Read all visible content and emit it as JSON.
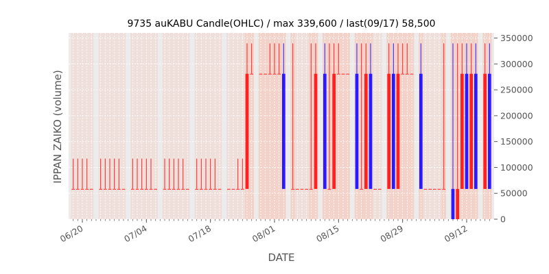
{
  "chart_data": {
    "type": "candlestick",
    "title": "9735 auKABU Candle(OHLC) / max 339,600 / last(09/17) 58,500",
    "xlabel": "DATE",
    "ylabel": "IPPAN ZAIKO (volume)",
    "ylim": [
      0,
      360000
    ],
    "yticks": [
      0,
      50000,
      100000,
      150000,
      200000,
      250000,
      300000,
      350000
    ],
    "ytick_labels": [
      "0",
      "50000",
      "100000",
      "150000",
      "200000",
      "250000",
      "300000",
      "350000"
    ],
    "x_start": "06/17",
    "x_end": "09/18",
    "xticks": [
      "06/20",
      "07/04",
      "07/18",
      "08/01",
      "08/15",
      "08/29",
      "09/12"
    ],
    "colors": {
      "up": "#ff2020",
      "down": "#2a1aff",
      "plot_bg": "#ececec",
      "grid": "#ffffff",
      "shade": "#f5c9bd"
    },
    "dates": [
      "06/18",
      "06/19",
      "06/20",
      "06/21",
      "06/22",
      "06/24",
      "06/25",
      "06/26",
      "06/27",
      "06/28",
      "06/29",
      "07/01",
      "07/02",
      "07/03",
      "07/04",
      "07/05",
      "07/06",
      "07/08",
      "07/09",
      "07/10",
      "07/11",
      "07/12",
      "07/13",
      "07/15",
      "07/16",
      "07/17",
      "07/18",
      "07/19",
      "07/20",
      "07/22",
      "07/23",
      "07/24",
      "07/25",
      "07/26",
      "07/27",
      "07/29",
      "07/30",
      "07/31",
      "08/01",
      "08/02",
      "08/03",
      "08/05",
      "08/06",
      "08/07",
      "08/08",
      "08/09",
      "08/10",
      "08/12",
      "08/13",
      "08/14",
      "08/15",
      "08/16",
      "08/17",
      "08/19",
      "08/20",
      "08/21",
      "08/22",
      "08/23",
      "08/24",
      "08/26",
      "08/27",
      "08/28",
      "08/29",
      "08/30",
      "08/31",
      "09/02",
      "09/03",
      "09/04",
      "09/05",
      "09/06",
      "09/07",
      "09/09",
      "09/10",
      "09/11",
      "09/12",
      "09/13",
      "09/14",
      "09/16",
      "09/17"
    ],
    "ohlc": [
      [
        58500,
        117000,
        58500,
        58500
      ],
      [
        58500,
        117000,
        58500,
        58500
      ],
      [
        58500,
        117000,
        58500,
        58500
      ],
      [
        58500,
        117000,
        58500,
        58500
      ],
      [
        58500,
        58500,
        58500,
        58500
      ],
      [
        58500,
        117000,
        58500,
        58500
      ],
      [
        58500,
        117000,
        58500,
        58500
      ],
      [
        58500,
        117000,
        58500,
        58500
      ],
      [
        58500,
        117000,
        58500,
        58500
      ],
      [
        58500,
        117000,
        58500,
        58500
      ],
      [
        58500,
        58500,
        58500,
        58500
      ],
      [
        58500,
        117000,
        58500,
        58500
      ],
      [
        58500,
        117000,
        58500,
        58500
      ],
      [
        58500,
        117000,
        58500,
        58500
      ],
      [
        58500,
        117000,
        58500,
        58500
      ],
      [
        58500,
        117000,
        58500,
        58500
      ],
      [
        58500,
        58500,
        58500,
        58500
      ],
      [
        58500,
        117000,
        58500,
        58500
      ],
      [
        58500,
        117000,
        58500,
        58500
      ],
      [
        58500,
        117000,
        58500,
        58500
      ],
      [
        58500,
        117000,
        58500,
        58500
      ],
      [
        58500,
        117000,
        58500,
        58500
      ],
      [
        58500,
        58500,
        58500,
        58500
      ],
      [
        58500,
        117000,
        58500,
        58500
      ],
      [
        58500,
        117000,
        58500,
        58500
      ],
      [
        58500,
        117000,
        58500,
        58500
      ],
      [
        58500,
        117000,
        58500,
        58500
      ],
      [
        58500,
        117000,
        58500,
        58500
      ],
      [
        58500,
        58500,
        58500,
        58500
      ],
      [
        58500,
        58500,
        58500,
        58500
      ],
      [
        58500,
        58500,
        58500,
        58500
      ],
      [
        58500,
        117000,
        58500,
        58500
      ],
      [
        58500,
        117000,
        58500,
        58500
      ],
      [
        58500,
        339600,
        58500,
        281000
      ],
      [
        281000,
        339600,
        281000,
        281000
      ],
      [
        281000,
        281000,
        281000,
        281000
      ],
      [
        281000,
        281000,
        281000,
        281000
      ],
      [
        281000,
        339600,
        281000,
        281000
      ],
      [
        281000,
        339600,
        281000,
        281000
      ],
      [
        281000,
        339600,
        281000,
        281000
      ],
      [
        281000,
        339600,
        58500,
        58500
      ],
      [
        58500,
        339600,
        58500,
        58500
      ],
      [
        58500,
        58500,
        58500,
        58500
      ],
      [
        58500,
        58500,
        58500,
        58500
      ],
      [
        58500,
        58500,
        58500,
        58500
      ],
      [
        58500,
        339600,
        58500,
        58500
      ],
      [
        58500,
        339600,
        58500,
        281000
      ],
      [
        281000,
        339600,
        58500,
        58500
      ],
      [
        58500,
        339600,
        58500,
        58500
      ],
      [
        58500,
        339600,
        58500,
        281000
      ],
      [
        281000,
        339600,
        281000,
        281000
      ],
      [
        281000,
        281000,
        281000,
        281000
      ],
      [
        281000,
        281000,
        281000,
        281000
      ],
      [
        281000,
        339600,
        58500,
        58500
      ],
      [
        58500,
        339600,
        58500,
        58500
      ],
      [
        58500,
        339600,
        58500,
        281000
      ],
      [
        281000,
        339600,
        58500,
        58500
      ],
      [
        58500,
        58500,
        58500,
        58500
      ],
      [
        58500,
        58500,
        58500,
        58500
      ],
      [
        58500,
        339600,
        58500,
        281000
      ],
      [
        281000,
        339600,
        58500,
        58500
      ],
      [
        58500,
        339600,
        58500,
        281000
      ],
      [
        281000,
        339600,
        281000,
        281000
      ],
      [
        281000,
        339600,
        281000,
        281000
      ],
      [
        281000,
        281000,
        281000,
        281000
      ],
      [
        281000,
        339600,
        58500,
        58500
      ],
      [
        58500,
        58500,
        58500,
        58500
      ],
      [
        58500,
        58500,
        58500,
        58500
      ],
      [
        58500,
        58500,
        58500,
        58500
      ],
      [
        58500,
        58500,
        58500,
        58500
      ],
      [
        58500,
        339600,
        58500,
        58500
      ],
      [
        58500,
        339600,
        0,
        0
      ],
      [
        0,
        339600,
        0,
        58500
      ],
      [
        58500,
        339600,
        58500,
        281000
      ],
      [
        281000,
        339600,
        58500,
        58500
      ],
      [
        58500,
        339600,
        58500,
        281000
      ],
      [
        281000,
        339600,
        58500,
        58500
      ],
      [
        58500,
        339600,
        58500,
        281000
      ],
      [
        281000,
        339600,
        58500,
        58500
      ]
    ]
  }
}
